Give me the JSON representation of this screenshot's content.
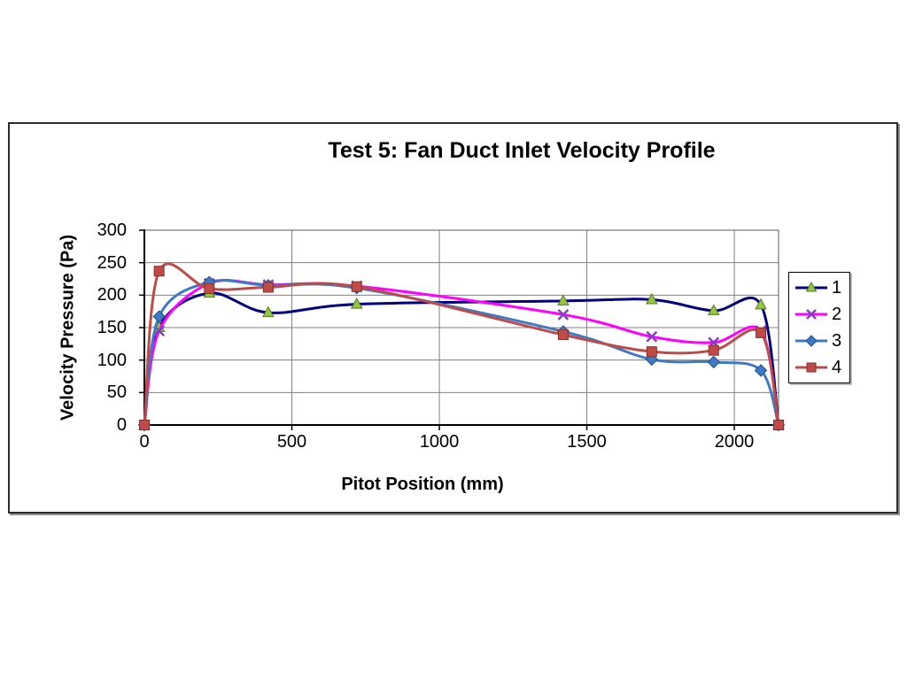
{
  "chart_data": {
    "type": "line",
    "title": "Test 5: Fan Duct Inlet Velocity Profile",
    "xlabel": "Pitot Position (mm)",
    "ylabel": "Velocity Pressure (Pa)",
    "xlim": [
      0,
      2150
    ],
    "ylim": [
      0,
      300
    ],
    "x_ticks": [
      0,
      500,
      1000,
      1500,
      2000
    ],
    "y_ticks": [
      0,
      50,
      100,
      150,
      200,
      250,
      300
    ],
    "grid": true,
    "smooth_lines": true,
    "legend_position": "right",
    "gridline_color": "#808080",
    "axis_color": "#000000",
    "x": [
      0,
      50,
      220,
      420,
      720,
      1420,
      1720,
      1930,
      2090,
      2150
    ],
    "series": [
      {
        "name": "1",
        "line_color": "#000080",
        "marker": "triangle",
        "marker_fill": "#92C83E",
        "marker_stroke": "#5A7A28",
        "values": [
          0,
          150,
          203,
          173,
          186,
          191,
          193,
          176,
          185,
          0
        ]
      },
      {
        "name": "2",
        "line_color": "#FF00FF",
        "marker": "x",
        "marker_fill": "#8040C0",
        "marker_stroke": "#8040C0",
        "values": [
          0,
          145,
          218,
          216,
          214,
          170,
          136,
          127,
          145,
          0
        ]
      },
      {
        "name": "3",
        "line_color": "#3E79C6",
        "marker": "diamond",
        "marker_fill": "#3E79C6",
        "marker_stroke": "#1F4E8C",
        "values": [
          0,
          167,
          220,
          215,
          211,
          144,
          101,
          97,
          84,
          0
        ]
      },
      {
        "name": "4",
        "line_color": "#BE4B48",
        "marker": "square",
        "marker_fill": "#BE4B48",
        "marker_stroke": "#8C2F2D",
        "values": [
          0,
          237,
          210,
          212,
          213,
          139,
          113,
          115,
          142,
          0
        ]
      }
    ]
  }
}
